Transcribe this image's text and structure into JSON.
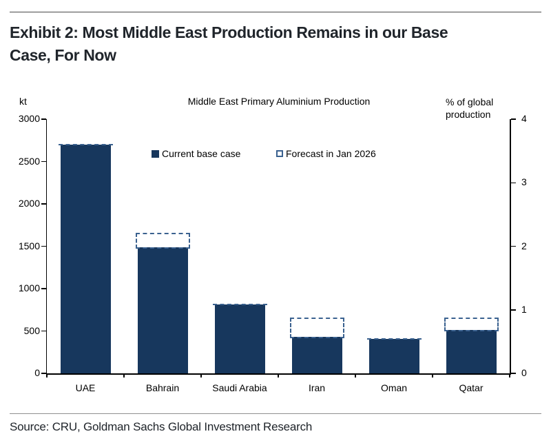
{
  "header": {
    "title": "Exhibit 2: Most Middle East Production Remains in our Base Case, For Now"
  },
  "footer": {
    "source": "Source: CRU, Goldman Sachs Global Investment Research"
  },
  "chart_data": {
    "type": "bar",
    "title": "Middle East Primary Aluminium Production",
    "left_axis_unit": "kt",
    "right_axis_unit": "% of global production",
    "categories": [
      "UAE",
      "Bahrain",
      "Saudi Arabia",
      "Iran",
      "Oman",
      "Qatar"
    ],
    "series": [
      {
        "name": "Current base case",
        "style": "solid",
        "color": "#17375D",
        "values": [
          2700,
          1490,
          815,
          430,
          405,
          515
        ]
      },
      {
        "name": "Forecast in Jan 2026",
        "style": "dashed-outline",
        "color": "#3A618F",
        "values": [
          2700,
          1660,
          815,
          655,
          405,
          655
        ]
      }
    ],
    "ylim_left": [
      0,
      3000
    ],
    "ylim_right": [
      0,
      4
    ],
    "left_ticks": [
      0,
      500,
      1000,
      1500,
      2000,
      2500,
      3000
    ],
    "right_ticks": [
      0,
      1,
      2,
      3,
      4
    ],
    "grid": false,
    "legend_position": "top-center-inside"
  },
  "colors": {
    "bar_fill": "#17375D",
    "forecast_dash": "#3A618F",
    "axis": "#000000",
    "title_text": "#20252b",
    "rule_top": "#474747",
    "rule_bottom": "#8f8f8f"
  }
}
